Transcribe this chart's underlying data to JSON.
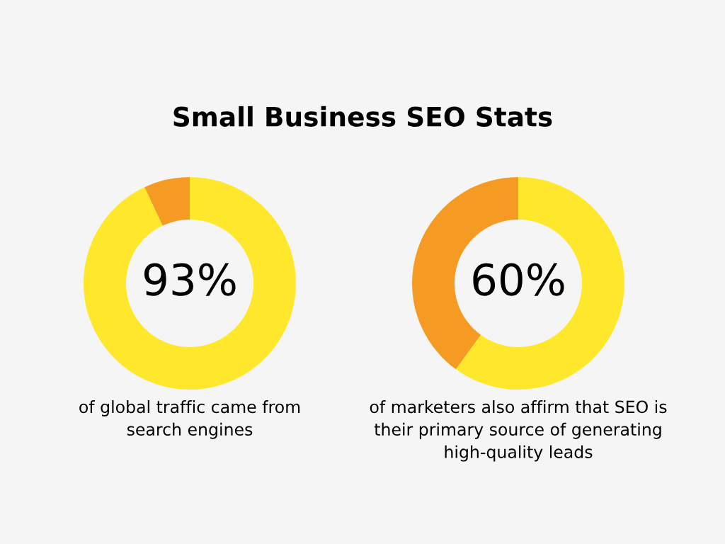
{
  "chart_data": [
    {
      "type": "donut",
      "title": "Small Business SEO Stats",
      "categories": [
        null,
        null
      ],
      "values": [
        93,
        7
      ],
      "colors": [
        "#ffe82c",
        "#f59b23"
      ],
      "value_labels": [
        "93%",
        null
      ],
      "annotations": [
        "of global traffic came from\nsearch engines"
      ]
    },
    {
      "type": "donut",
      "categories": [
        null,
        null
      ],
      "values": [
        60,
        40
      ],
      "colors": [
        "#ffe82c",
        "#f59b23"
      ],
      "value_labels": [
        "60%",
        null
      ],
      "annotations": [
        "of marketers also affirm that SEO is\ntheir primary source of generating\nhigh-quality leads"
      ]
    }
  ]
}
